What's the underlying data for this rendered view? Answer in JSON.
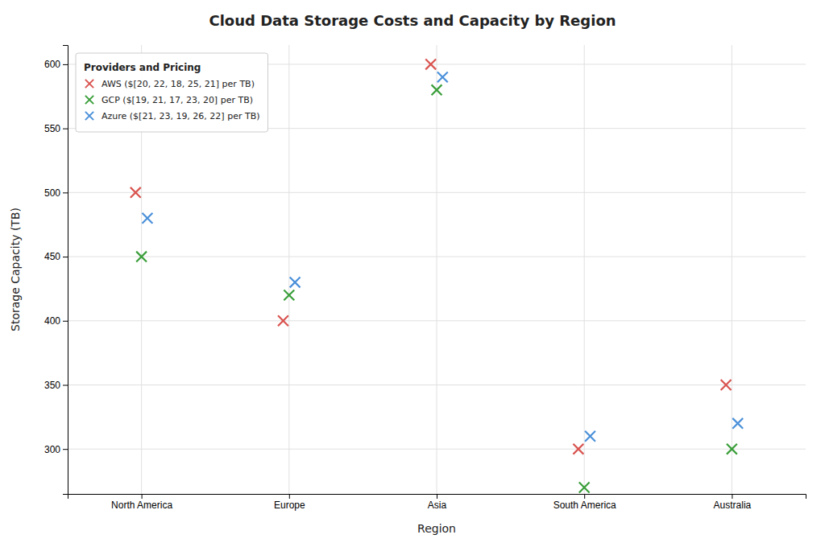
{
  "chart_data": {
    "type": "scatter",
    "title": "Cloud Data Storage Costs and Capacity by Region",
    "xlabel": "Region",
    "ylabel": "Storage Capacity (TB)",
    "categories": [
      "North America",
      "Europe",
      "Asia",
      "South America",
      "Australia"
    ],
    "series": [
      {
        "name": "AWS ($[20, 22, 18, 25, 21] per TB)",
        "color": "#d9534f",
        "values": [
          500,
          400,
          600,
          300,
          350
        ]
      },
      {
        "name": "GCP ($[19, 21, 17, 23, 20] per TB)",
        "color": "#3a9e3a",
        "values": [
          450,
          420,
          580,
          270,
          300
        ]
      },
      {
        "name": "Azure ($[21, 23, 19, 26, 22] per TB)",
        "color": "#4a90d9",
        "values": [
          480,
          430,
          590,
          310,
          320
        ]
      }
    ],
    "marker": "x",
    "ylim": [
      265,
      615
    ],
    "yticks": [
      300,
      350,
      400,
      450,
      500,
      550,
      600
    ],
    "grid": true,
    "legend": "upper left",
    "legend_title": "Providers and Pricing"
  }
}
